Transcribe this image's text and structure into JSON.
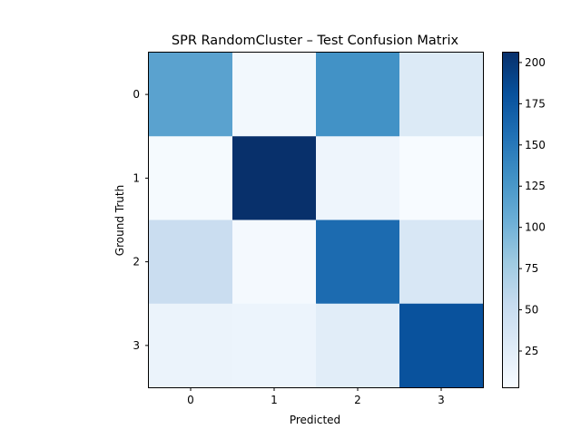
{
  "chart_data": {
    "type": "heatmap",
    "title": "SPR RandomCluster – Test Confusion Matrix",
    "xlabel": "Predicted",
    "ylabel": "Ground Truth",
    "x_categories": [
      "0",
      "1",
      "2",
      "3"
    ],
    "y_categories": [
      "0",
      "1",
      "2",
      "3"
    ],
    "values": [
      [
        115,
        8,
        130,
        30
      ],
      [
        5,
        206,
        12,
        3
      ],
      [
        50,
        6,
        160,
        35
      ],
      [
        15,
        14,
        25,
        180
      ]
    ],
    "colormap": "Blues",
    "vmin": 3,
    "vmax": 206,
    "colorbar_ticks": [
      25,
      50,
      75,
      100,
      125,
      150,
      175,
      200
    ],
    "grid": false
  }
}
